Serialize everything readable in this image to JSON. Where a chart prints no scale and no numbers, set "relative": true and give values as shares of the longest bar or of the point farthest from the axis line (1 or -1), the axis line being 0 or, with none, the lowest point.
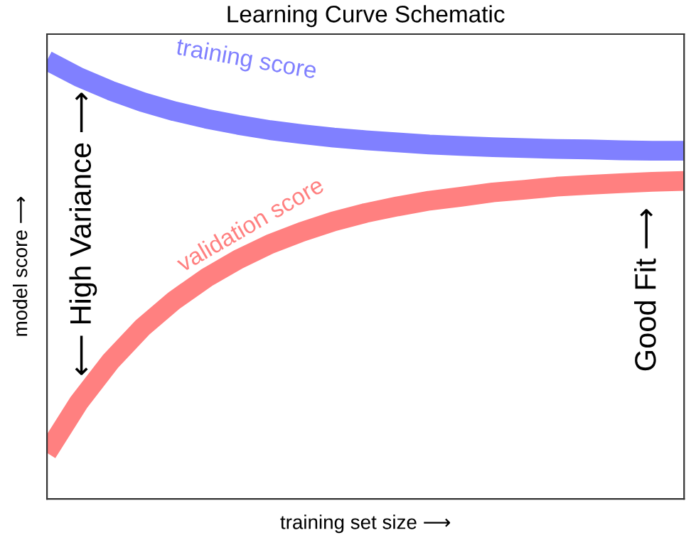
{
  "chart_data": {
    "type": "line",
    "title": "Learning Curve Schematic",
    "xlabel": "training set size ⟶",
    "ylabel": "model score ⟶",
    "relative": true,
    "legend": false,
    "marker": "none",
    "line_style": "solid",
    "categories": [
      null,
      null,
      null,
      null,
      null,
      null,
      null,
      null,
      null,
      null,
      null,
      null,
      null,
      null,
      null,
      null,
      null,
      null,
      null,
      null,
      null
    ],
    "series": [
      {
        "name": "training score",
        "color": "#8080ff",
        "values": [
          1.0,
          0.962,
          0.931,
          0.905,
          0.884,
          0.867,
          0.853,
          0.841,
          0.832,
          0.824,
          0.818,
          0.813,
          0.808,
          0.805,
          0.802,
          0.8,
          0.798,
          0.797,
          0.795,
          0.794,
          0.794
        ]
      },
      {
        "name": "validation score",
        "color": "#ff8080",
        "values": [
          0.105,
          0.22,
          0.314,
          0.391,
          0.453,
          0.504,
          0.546,
          0.581,
          0.609,
          0.633,
          0.652,
          0.667,
          0.68,
          0.689,
          0.699,
          0.705,
          0.712,
          0.716,
          0.72,
          0.723,
          0.725
        ]
      }
    ],
    "annotations": [
      "⟵ High Variance ⟶",
      "Good Fit ⟶"
    ]
  }
}
